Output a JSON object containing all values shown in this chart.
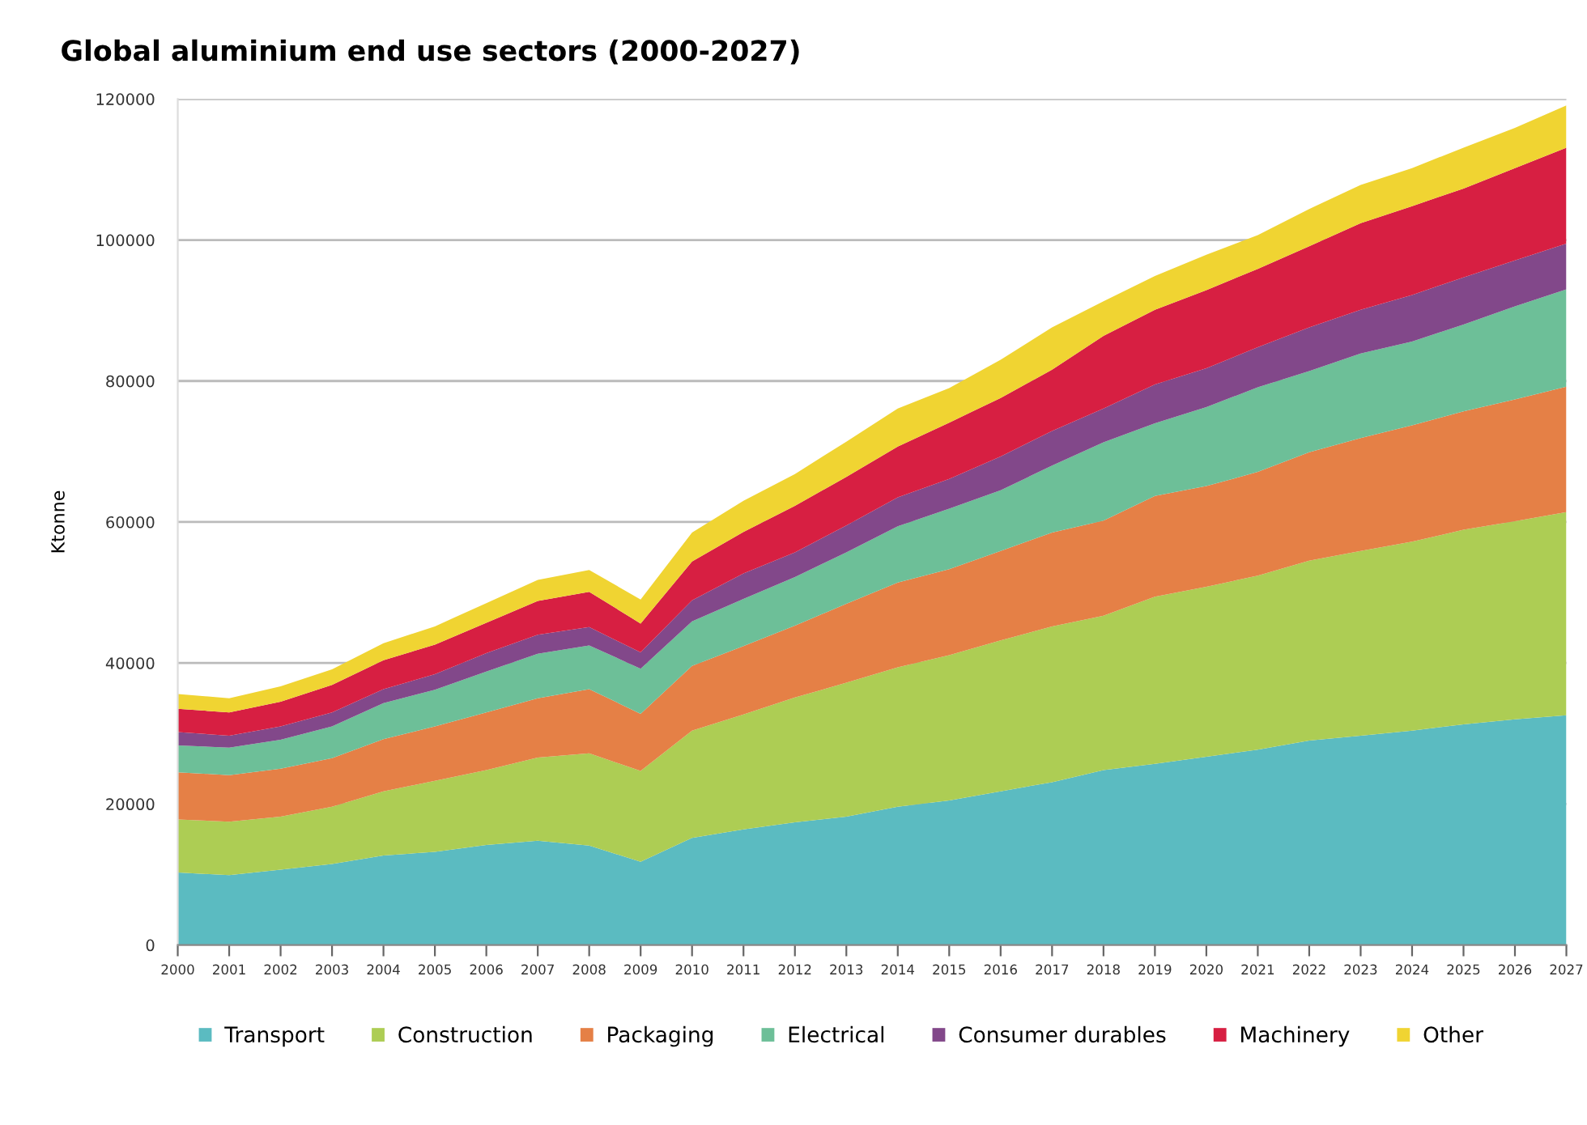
{
  "chart_data": {
    "type": "area",
    "stacked": true,
    "title": "Global aluminium end use sectors (2000-2027)",
    "ylabel": "Ktonne",
    "categories": [
      "2000",
      "2001",
      "2002",
      "2003",
      "2004",
      "2005",
      "2006",
      "2007",
      "2008",
      "2009",
      "2010",
      "2011",
      "2012",
      "2013",
      "2014",
      "2015",
      "2016",
      "2017",
      "2018",
      "2019",
      "2020",
      "2021",
      "2022",
      "2023",
      "2024",
      "2025",
      "2026",
      "2027"
    ],
    "series": [
      {
        "name": "Transport",
        "color": "#5bbbc1",
        "values": [
          10300,
          9900,
          10700,
          11500,
          12700,
          13200,
          14200,
          14800,
          14100,
          11800,
          15200,
          16400,
          17400,
          18200,
          19600,
          20500,
          21800,
          23100,
          24800,
          25700,
          26700,
          27700,
          29000,
          29700,
          30400,
          31300,
          32000,
          32600
        ]
      },
      {
        "name": "Construction",
        "color": "#adcd54",
        "values": [
          7500,
          7600,
          7500,
          8100,
          9100,
          10100,
          10600,
          11800,
          13100,
          12900,
          15200,
          16300,
          17700,
          19000,
          19800,
          20600,
          21400,
          22100,
          21900,
          23700,
          24100,
          24700,
          25500,
          26200,
          26800,
          27600,
          28100,
          28800
        ]
      },
      {
        "name": "Packaging",
        "color": "#e58046",
        "values": [
          6700,
          6600,
          6800,
          6900,
          7400,
          7700,
          8200,
          8400,
          9100,
          8100,
          9200,
          9700,
          10200,
          11200,
          12000,
          12200,
          12700,
          13300,
          13500,
          14300,
          14300,
          14700,
          15400,
          16000,
          16500,
          16800,
          17300,
          17800
        ]
      },
      {
        "name": "Electrical",
        "color": "#6dbf98",
        "values": [
          3800,
          3900,
          4100,
          4500,
          5100,
          5200,
          5800,
          6300,
          6200,
          6400,
          6300,
          6700,
          6900,
          7300,
          8000,
          8600,
          8600,
          9500,
          11100,
          10300,
          11200,
          12000,
          11500,
          12000,
          11900,
          12300,
          13200,
          13800
        ]
      },
      {
        "name": "Consumer durables",
        "color": "#82488a",
        "values": [
          1900,
          1700,
          1900,
          2000,
          2000,
          2200,
          2600,
          2700,
          2600,
          2300,
          3000,
          3600,
          3500,
          3800,
          4100,
          4200,
          4800,
          4900,
          4800,
          5500,
          5500,
          5700,
          6200,
          6200,
          6600,
          6700,
          6500,
          6500
        ]
      },
      {
        "name": "Machinery",
        "color": "#d71f42",
        "values": [
          3300,
          3300,
          3500,
          3900,
          4100,
          4200,
          4300,
          4800,
          5000,
          4100,
          5500,
          5900,
          6600,
          6900,
          7200,
          8000,
          8300,
          8700,
          10300,
          10600,
          11100,
          11100,
          11500,
          12300,
          12600,
          12600,
          13100,
          13600
        ]
      },
      {
        "name": "Other",
        "color": "#f0d432",
        "values": [
          2100,
          2000,
          2200,
          2200,
          2400,
          2600,
          2800,
          3000,
          3100,
          3400,
          4100,
          4400,
          4500,
          5000,
          5400,
          4900,
          5400,
          6000,
          4900,
          4800,
          5000,
          4800,
          5300,
          5400,
          5400,
          5800,
          5700,
          6000
        ]
      }
    ],
    "ylim": [
      0,
      120000
    ],
    "yticks": [
      0,
      20000,
      40000,
      60000,
      80000,
      100000,
      120000
    ],
    "grid": "y",
    "legend": "bottom"
  }
}
